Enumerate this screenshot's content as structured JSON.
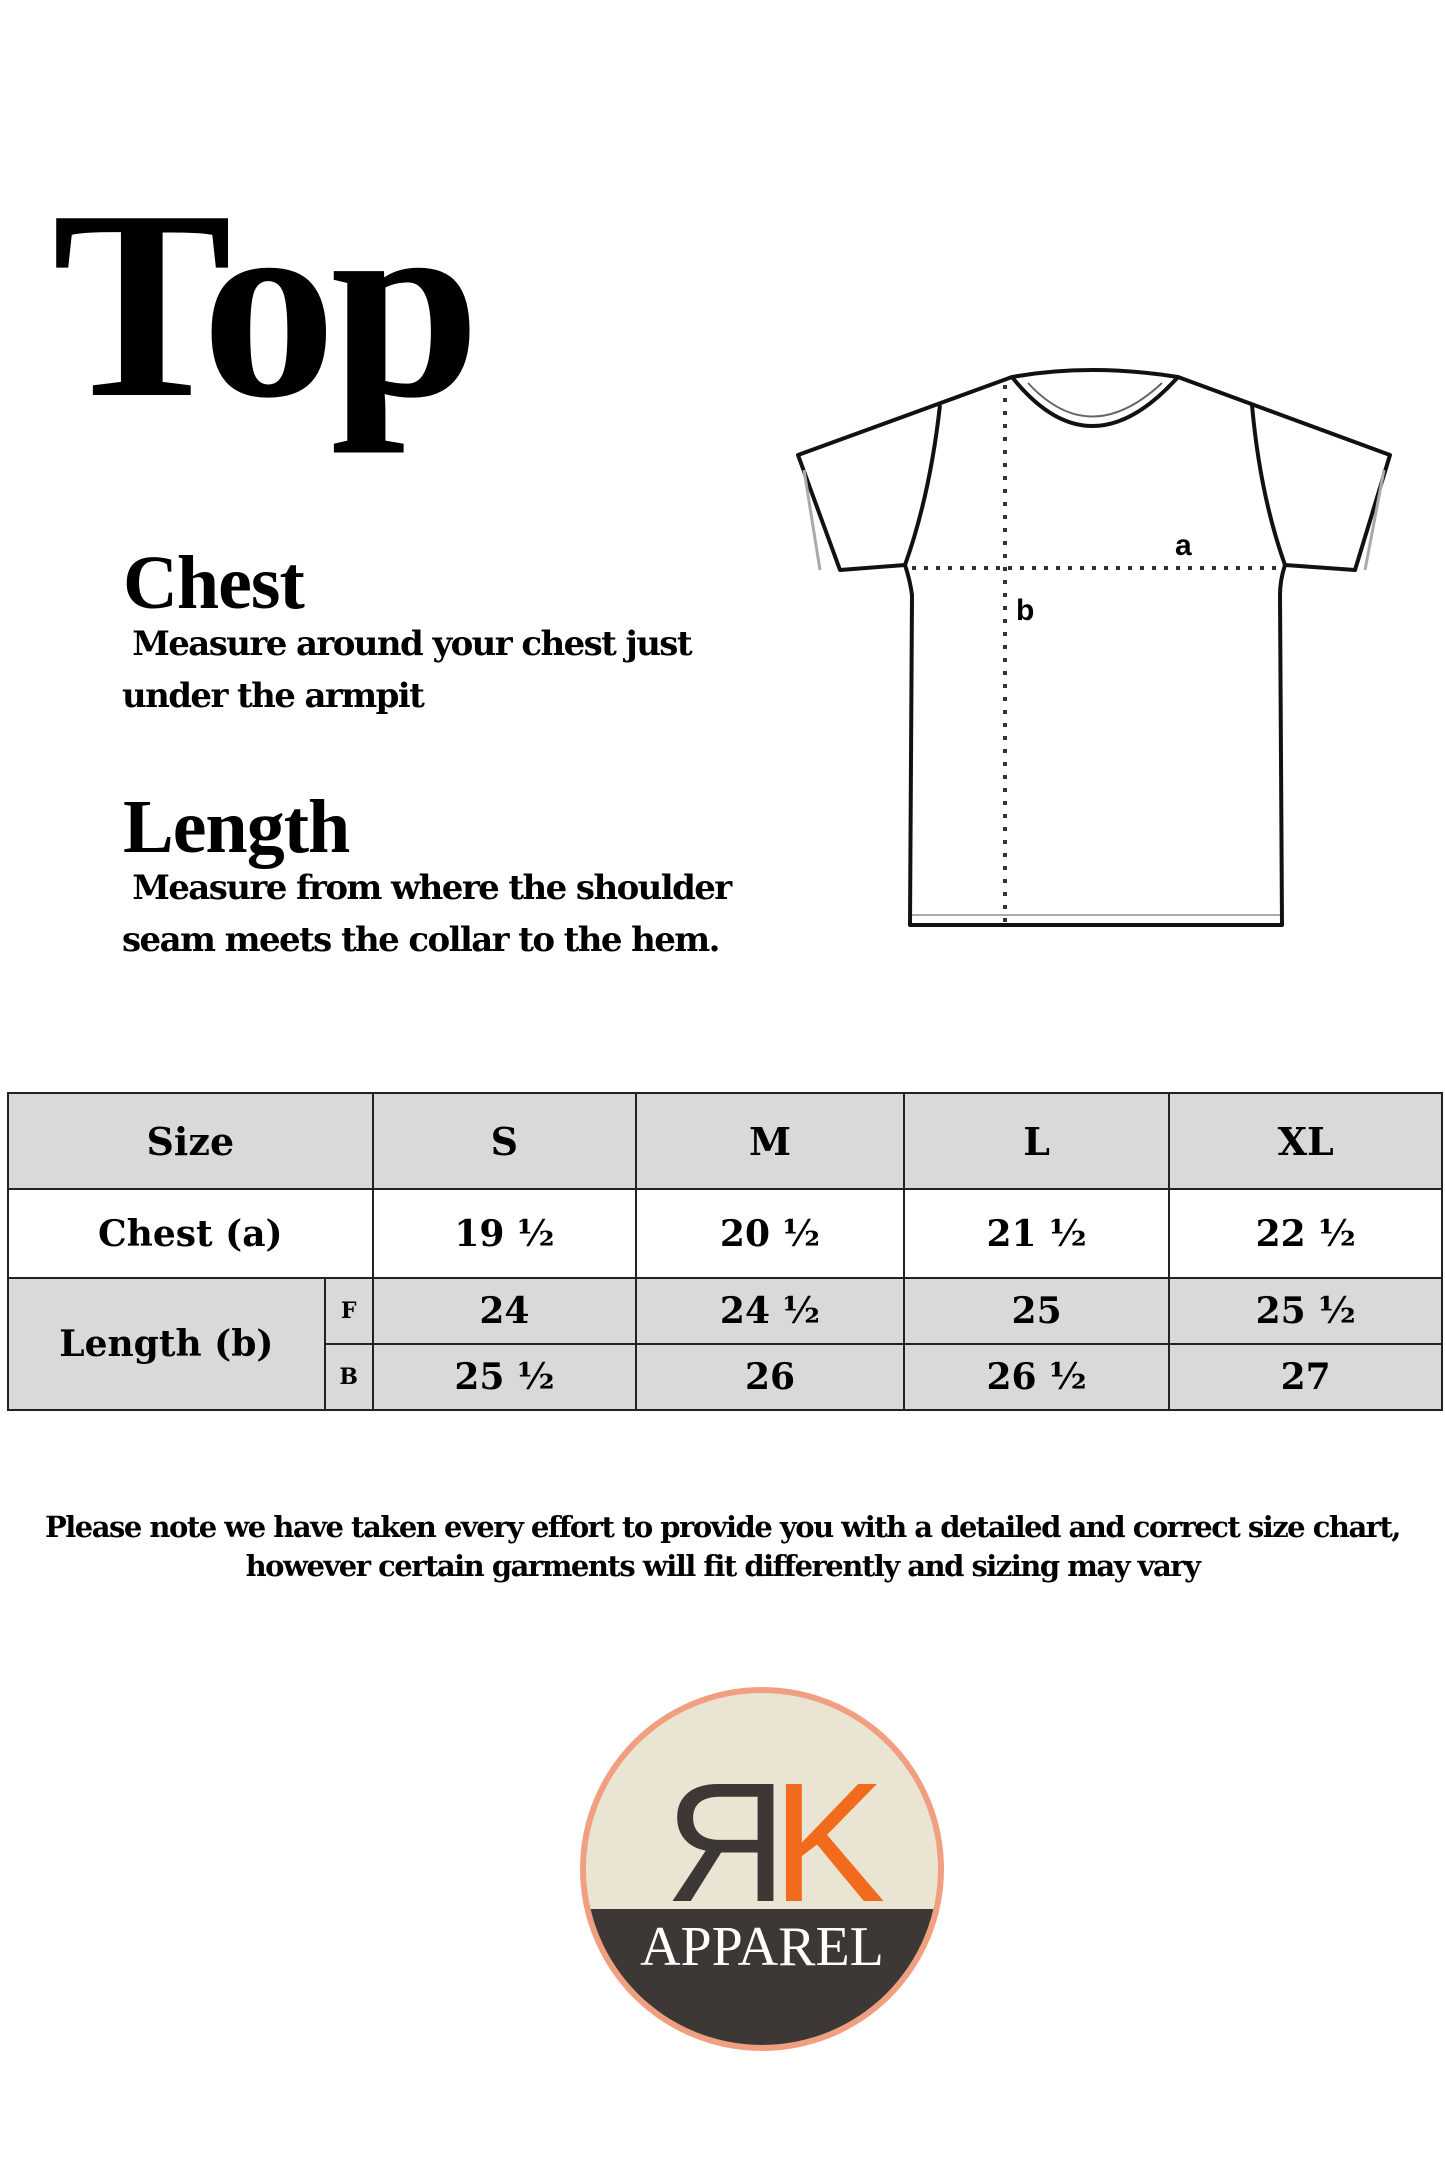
{
  "title": "Top",
  "chest": {
    "heading": "Chest",
    "text_line1": " Measure around your chest just",
    "text_line2": "under the armpit"
  },
  "length": {
    "heading": "Length",
    "text_line1": " Measure from where the shoulder",
    "text_line2": "seam meets the collar to the hem."
  },
  "diagram": {
    "label_a": "a",
    "label_b": "b"
  },
  "table": {
    "header": [
      "Size",
      "S",
      "M",
      "L",
      "XL"
    ],
    "chest_label": "Chest (a)",
    "chest_values": [
      "19 ½",
      "20 ½",
      "21 ½",
      "22 ½"
    ],
    "length_label": "Length (b)",
    "front_label": "F",
    "back_label": "B",
    "front_values": [
      "24",
      "24 ½",
      "25",
      "25 ½"
    ],
    "back_values": [
      "25 ½",
      "26",
      "26 ½",
      "27"
    ]
  },
  "note": {
    "line1": "Please note we have taken every effort to provide you with a detailed and correct size chart,",
    "line2": "however certain garments will fit differently and sizing may vary"
  },
  "logo": {
    "monogram": "ЯK",
    "brand": "APPAREL",
    "colors": {
      "ring": "#f0a080",
      "fill": "#eae4d3",
      "dark": "#3d3835",
      "accent": "#f26a1b"
    }
  }
}
